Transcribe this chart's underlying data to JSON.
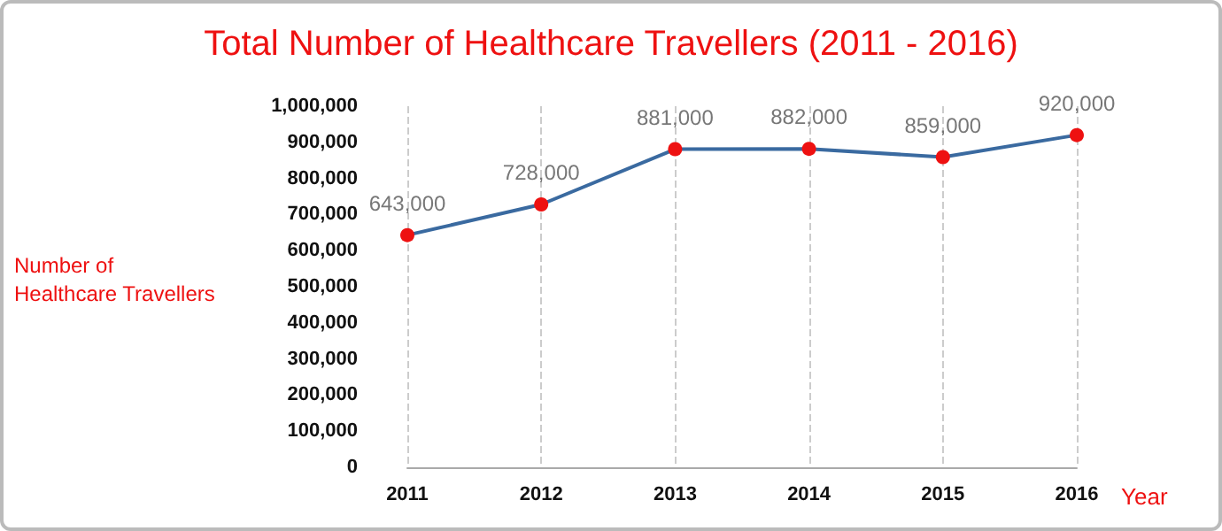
{
  "chart_data": {
    "type": "line",
    "title": "Total Number of Healthcare Travellers (2011 - 2016)",
    "xlabel": "Year",
    "ylabel": "Number of\nHealthcare Travellers",
    "categories": [
      "2011",
      "2012",
      "2013",
      "2014",
      "2015",
      "2016"
    ],
    "series": [
      {
        "color": "#3a6aa0",
        "values": [
          643000,
          728000,
          881000,
          882000,
          859000,
          920000
        ],
        "value_labels": [
          "643,000",
          "728,000",
          "881,000",
          "882,000",
          "859,000",
          "920,000"
        ]
      }
    ],
    "ylim": [
      0,
      1000000
    ],
    "yticks": [
      0,
      {
        "value": 100000,
        "label": "100,000"
      },
      {
        "value": 200000,
        "label": "200,000"
      },
      {
        "value": 300000,
        "label": "300,000"
      },
      {
        "value": 400000,
        "label": "400,000"
      },
      {
        "value": 500000,
        "label": "500,000"
      },
      {
        "value": 600000,
        "label": "600,000"
      },
      {
        "value": 700000,
        "label": "700,000"
      },
      {
        "value": 800000,
        "label": "800,000"
      },
      {
        "value": 900000,
        "label": "900,000"
      },
      {
        "value": 1000000,
        "label": "1,000,000"
      }
    ],
    "grid": "x",
    "marker": "circle",
    "line_style": "solid"
  }
}
